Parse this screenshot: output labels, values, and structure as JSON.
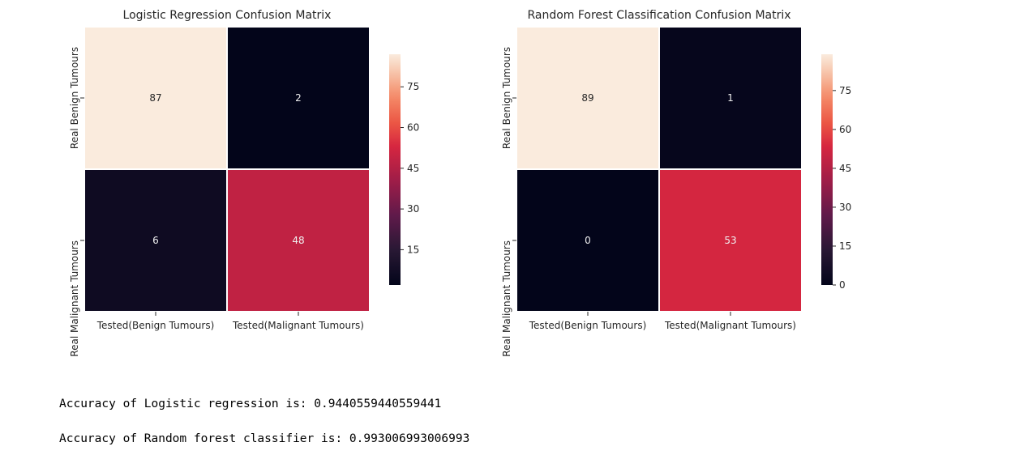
{
  "chart_data": [
    {
      "type": "heatmap",
      "title": "Logistic Regression Confusion Matrix",
      "rows": [
        "Real Benign Tumours",
        "Real Malignant Tumours"
      ],
      "columns": [
        "Tested(Benign Tumours)",
        "Tested(Malignant Tumours)"
      ],
      "values": [
        [
          87,
          2
        ],
        [
          6,
          48
        ]
      ],
      "colorbar": {
        "ticks": [
          15,
          30,
          45,
          60,
          75
        ],
        "min": 2,
        "max": 87
      },
      "colormap": "rocket",
      "grid": true
    },
    {
      "type": "heatmap",
      "title": "Random Forest Classification Confusion Matrix",
      "rows": [
        "Real Benign Tumours",
        "Real Malignant Tumours"
      ],
      "columns": [
        "Tested(Benign Tumours)",
        "Tested(Malignant Tumours)"
      ],
      "values": [
        [
          89,
          1
        ],
        [
          0,
          53
        ]
      ],
      "colorbar": {
        "ticks": [
          0,
          15,
          30,
          45,
          60,
          75
        ],
        "min": 0,
        "max": 89
      },
      "colormap": "rocket",
      "grid": true
    }
  ],
  "output": {
    "line1": "Accuracy of Logistic regression is: 0.9440559440559441",
    "line2": "Accuracy of Random forest classifier is: 0.993006993006993"
  }
}
